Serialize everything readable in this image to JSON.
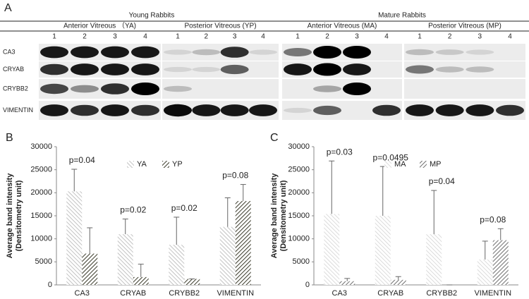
{
  "blot": {
    "label": "A",
    "groups": [
      "Young Rabbits",
      "Mature Rabbits"
    ],
    "subgroups": [
      "Anterior Vitreous （YA)",
      "Posterior Vitreous (YP)",
      "Anterior Vitreous (MA)",
      "Posterior Vitreous (MP)"
    ],
    "lanes": [
      "1",
      "2",
      "3",
      "4"
    ],
    "rows": [
      "CA3",
      "CRYAB",
      "CRYBB2",
      "VIMENTIN"
    ]
  },
  "chart_data": [
    {
      "type": "bar",
      "label": "B",
      "ylabel": [
        "Average band intensity",
        "(Densitometry unit)"
      ],
      "categories": [
        "CA3",
        "CRYAB",
        "CRYBB2",
        "VIMENTIN"
      ],
      "series": [
        {
          "name": "YA",
          "color": "#b0b0b0",
          "values": [
            20300,
            11000,
            8700,
            12600
          ],
          "errors": [
            4800,
            3300,
            6000,
            6300
          ]
        },
        {
          "name": "YP",
          "color": "#3a3a2a",
          "values": [
            6800,
            1700,
            1300,
            18200
          ],
          "errors": [
            5600,
            2800,
            0,
            3600
          ]
        }
      ],
      "annotations": [
        "p=0.04",
        "p=0.02",
        "p=0.02",
        "p=0.08"
      ],
      "ylim": [
        0,
        30000
      ],
      "yticks": [
        0,
        5000,
        10000,
        15000,
        20000,
        25000,
        30000
      ],
      "legend": "top-center"
    },
    {
      "type": "bar",
      "label": "C",
      "ylabel": [
        "Average band intensity",
        "(Densitometry unit)"
      ],
      "categories": [
        "CA3",
        "CRYAB",
        "CRYBB2",
        "VIMENTIN"
      ],
      "series": [
        {
          "name": "MA",
          "color": "#d0d0d0",
          "values": [
            15400,
            15000,
            11000,
            5500
          ],
          "errors": [
            11500,
            10700,
            9500,
            4000
          ]
        },
        {
          "name": "MP",
          "color": "#707070",
          "values": [
            800,
            1100,
            0,
            9700
          ],
          "errors": [
            600,
            700,
            0,
            2500
          ]
        }
      ],
      "annotations": [
        "p=0.03",
        "p=0.0495",
        "p=0.04",
        "p=0.08"
      ],
      "ylim": [
        0,
        30000
      ],
      "yticks": [
        0,
        5000,
        10000,
        15000,
        20000,
        25000,
        30000
      ],
      "legend": "top-center"
    }
  ]
}
